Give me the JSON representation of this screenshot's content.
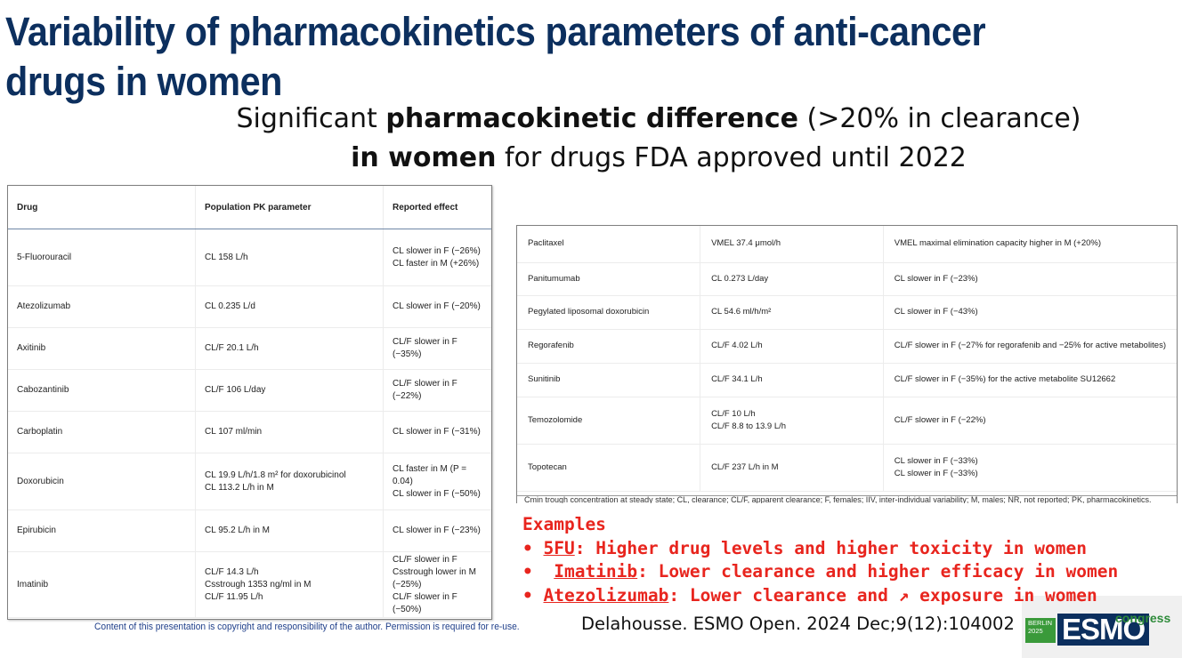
{
  "title": "Variability of pharmacokinetics parameters of anti-cancer drugs in women",
  "subtitle": {
    "l1_pre": "Significant ",
    "l1_bold": "pharmacokinetic difference",
    "l1_post": " (>20% in clearance)",
    "l2_bold": "in women",
    "l2_post": " for drugs FDA approved until 2022"
  },
  "table1": {
    "headers": [
      "Drug",
      "Population PK parameter",
      "Reported effect"
    ],
    "rows": [
      {
        "drug": "5-Fluorouracil",
        "param": [
          "CL 158 L/h"
        ],
        "effect": [
          "CL slower in F (−26%)",
          "CL faster in M (+26%)"
        ]
      },
      {
        "drug": "Atezolizumab",
        "param": [
          "CL 0.235 L/d"
        ],
        "effect": [
          "CL slower in F (−20%)"
        ]
      },
      {
        "drug": "Axitinib",
        "param": [
          "CL/F 20.1 L/h"
        ],
        "effect": [
          "CL/F slower in F (−35%)"
        ]
      },
      {
        "drug": "Cabozantinib",
        "param": [
          "CL/F 106 L/day"
        ],
        "effect": [
          "CL/F slower in F (−22%)"
        ]
      },
      {
        "drug": "Carboplatin",
        "param": [
          "CL 107 ml/min"
        ],
        "effect": [
          "CL slower in F (−31%)"
        ]
      },
      {
        "drug": "Doxorubicin",
        "param": [
          "CL 19.9 L/h/1.8 m² for doxorubicinol",
          "CL 113.2 L/h in M"
        ],
        "effect": [
          "CL faster in M (P = 0.04)",
          "CL slower in F (−50%)"
        ]
      },
      {
        "drug": "Epirubicin",
        "param": [
          "CL 95.2 L/h in M"
        ],
        "effect": [
          "CL slower in F (−23%)"
        ]
      },
      {
        "drug": "Imatinib",
        "param": [
          "CL/F 14.3 L/h",
          "Csstrough 1353 ng/ml in M",
          "CL/F 11.95 L/h"
        ],
        "effect": [
          "CL/F slower in F",
          "Csstrough lower in M (−25%)",
          "CL/F slower in F (−50%)"
        ]
      }
    ]
  },
  "table2": {
    "rows": [
      {
        "drug": "Paclitaxel",
        "param": [
          "VMEL 37.4 μmol/h"
        ],
        "effect": [
          "VMEL maximal elimination capacity higher in M (+20%)"
        ]
      },
      {
        "drug": "Panitumumab",
        "param": [
          "CL 0.273 L/day"
        ],
        "effect": [
          "CL slower in F (−23%)"
        ]
      },
      {
        "drug": "Pegylated liposomal doxorubicin",
        "param": [
          "CL 54.6 ml/h/m²"
        ],
        "effect": [
          "CL slower in F (−43%)"
        ]
      },
      {
        "drug": "Regorafenib",
        "param": [
          "CL/F 4.02 L/h"
        ],
        "effect": [
          "CL/F slower in F (−27% for regorafenib and −25% for active metabolites)"
        ]
      },
      {
        "drug": "Sunitinib",
        "param": [
          "CL/F 34.1 L/h"
        ],
        "effect": [
          "CL/F slower in F (−35%) for the active metabolite SU12662"
        ]
      },
      {
        "drug": "Temozolomide",
        "param": [
          "CL/F 10 L/h",
          "CL/F 8.8 to 13.9 L/h"
        ],
        "effect": [
          "CL/F slower in F (−22%)"
        ]
      },
      {
        "drug": "Topotecan",
        "param": [
          "CL/F 237 L/h in M"
        ],
        "effect": [
          "CL slower in F (−33%)",
          "CL slower in F (−33%)"
        ]
      }
    ],
    "footnote": "Cmin trough concentration at steady state; CL, clearance; CL/F, apparent clearance; F, females; IIV, inter-individual variability; M, males; NR, not reported; PK, pharmacokinetics."
  },
  "examples": {
    "heading": "Examples",
    "items": [
      {
        "bullet": "• ",
        "drug": "5FU",
        "text": ": Higher drug levels and higher toxicity in women"
      },
      {
        "bullet": "•  ",
        "drug": "Imatinib",
        "text": ": Lower clearance and higher efficacy in women"
      },
      {
        "bullet": "• ",
        "drug": "Atezolizumab",
        "text": ": Lower clearance and ↗ exposure in women"
      }
    ]
  },
  "footer_note": "Content of this presentation is copyright and responsibility of the author. Permission is required for re-use.",
  "citation": "Delahousse. ESMO Open. 2024 Dec;9(12):104002",
  "logo": {
    "badge_l1": "BERLIN",
    "badge_l2": "2025",
    "esmo": "ESMO",
    "congress": "congress"
  }
}
